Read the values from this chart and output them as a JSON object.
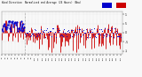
{
  "title": "Wind Direction  Normalized and Average (24 Hours) (New)",
  "bg_color": "#f8f8f8",
  "plot_bg": "#f8f8f8",
  "grid_color": "#cccccc",
  "bar_color": "#cc0000",
  "line_color": "#0000cc",
  "ylim": [
    -1.15,
    1.15
  ],
  "yticks": [
    1,
    0.5,
    0,
    -0.5,
    -1
  ],
  "ytick_labels": [
    "1",
    ".5",
    "0",
    "-.5",
    "-1"
  ],
  "n_points": 144,
  "seed": 7,
  "vline_pos": 28
}
